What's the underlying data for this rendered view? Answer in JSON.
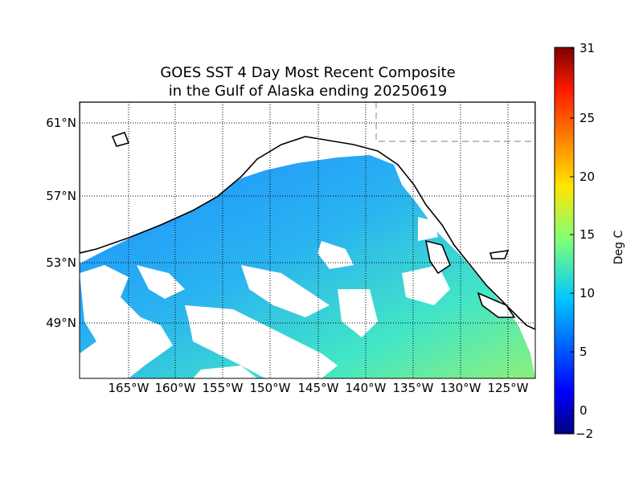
{
  "title": {
    "line1": "GOES SST 4 Day Most Recent Composite",
    "line2": "in the Gulf of Alaska ending 20250619"
  },
  "map": {
    "lat_labels": [
      "61°N",
      "57°N",
      "53°N",
      "49°N"
    ],
    "lon_labels": [
      "165°W",
      "160°W",
      "155°W",
      "150°W",
      "145°W",
      "140°W",
      "135°W",
      "130°W",
      "125°W"
    ],
    "extent": {
      "lon_min": -170,
      "lon_max": -122,
      "lat_min": 46,
      "lat_max": 62
    },
    "grid": "dotted",
    "colormap": "jet",
    "missing_data_color": "#ffffff",
    "typical_offshore_sst_c": 9,
    "typical_southeast_sst_c": 14
  },
  "colorbar": {
    "label": "Deg C",
    "min": -2,
    "max": 31,
    "ticks": [
      "31",
      "25",
      "20",
      "15",
      "10",
      "5",
      "0",
      "−2"
    ],
    "tick_values": [
      31,
      25,
      20,
      15,
      10,
      5,
      0,
      -2
    ]
  }
}
